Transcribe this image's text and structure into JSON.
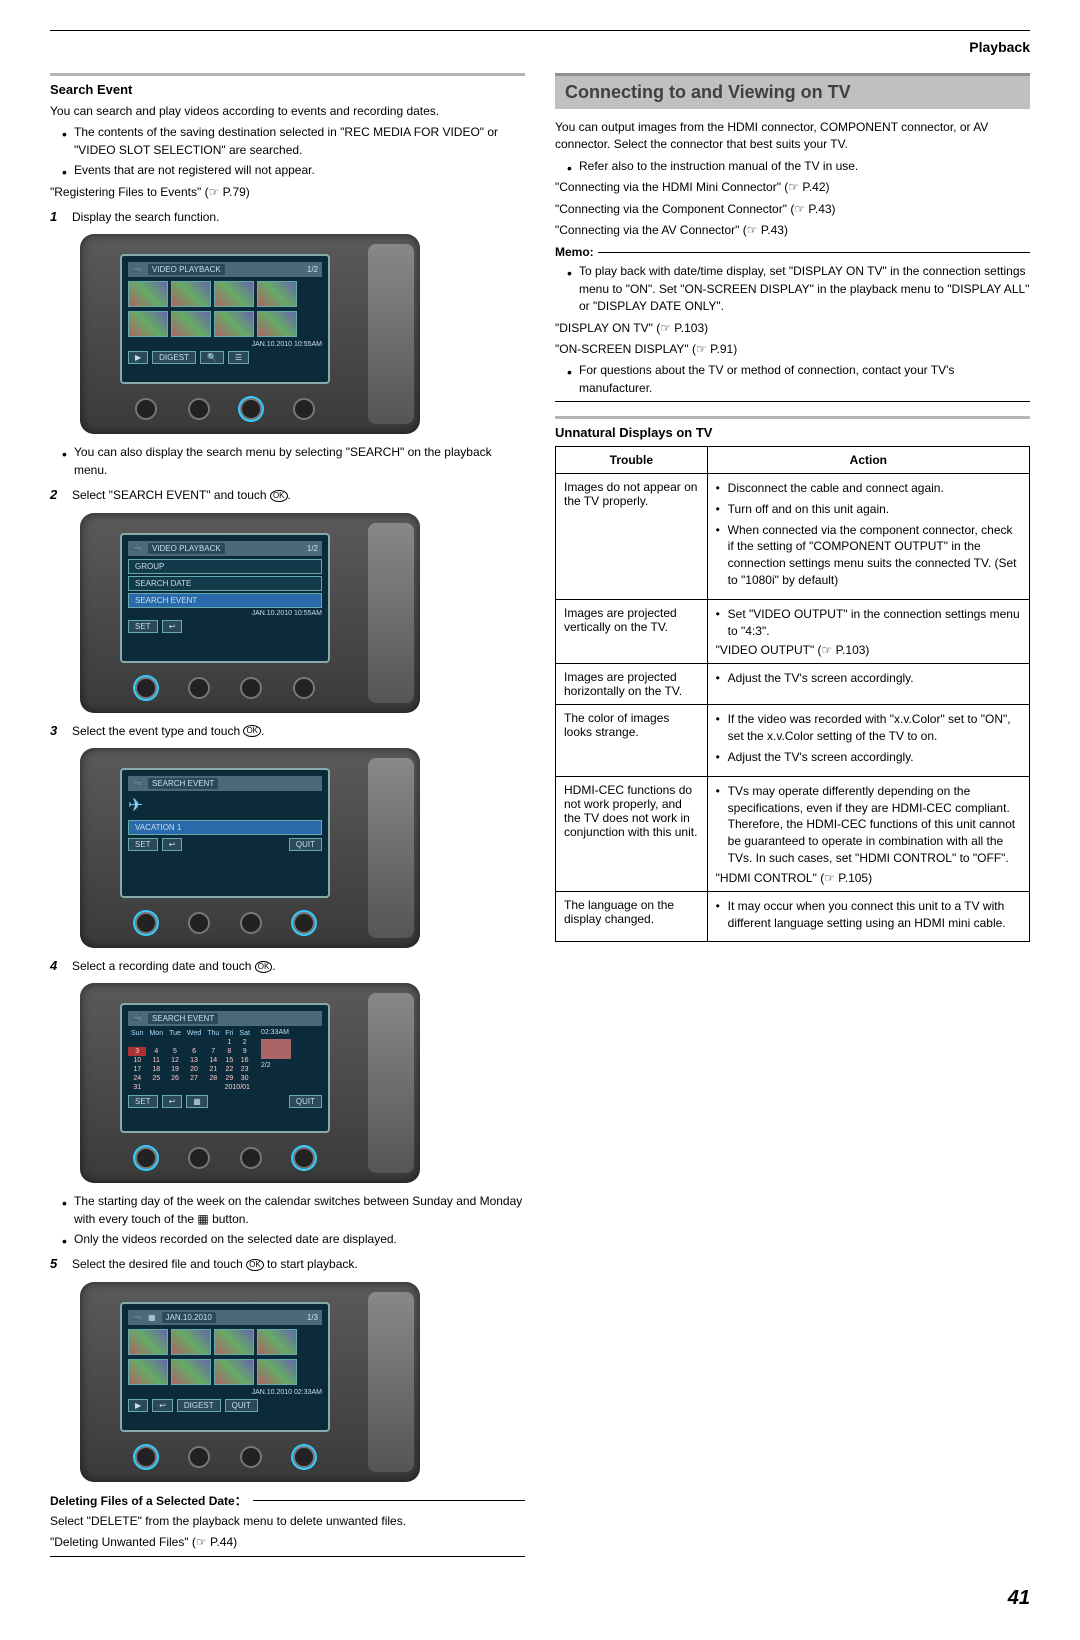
{
  "header": {
    "section": "Playback"
  },
  "left": {
    "title": "Search Event",
    "intro": "You can search and play videos according to events and recording dates.",
    "bullets_a": [
      "The contents of the saving destination selected in \"REC MEDIA FOR VIDEO\" or \"VIDEO SLOT SELECTION\" are searched.",
      "Events that are not registered will not appear."
    ],
    "ref_a": "\"Registering Files to Events\"  (☞ P.79)",
    "steps": [
      {
        "n": "1",
        "text": "Display the search function."
      },
      {
        "n": "2",
        "text": "Select \"SEARCH EVENT\" and touch "
      },
      {
        "n": "3",
        "text": "Select the event type and touch "
      },
      {
        "n": "4",
        "text": "Select a recording date and touch "
      },
      {
        "n": "5",
        "text": "Select the desired file and touch "
      }
    ],
    "step1_note": "You can also display the search menu by selecting \"SEARCH\" on the playback menu.",
    "step4_notes": [
      "The starting day of the week on the calendar switches between Sunday and Monday with every touch of the ▦ button.",
      "Only the videos recorded on the selected date are displayed."
    ],
    "step5_tail": " to start playback.",
    "del_head": "Deleting Files of a Selected Date：",
    "del_text": "Select \"DELETE\" from the playback menu to delete unwanted files.",
    "del_ref": "\"Deleting Unwanted Files\"  (☞ P.44)",
    "screens": {
      "s1": {
        "title": "VIDEO PLAYBACK",
        "count": "1/2",
        "date": "JAN.10.2010 10:55AM",
        "btns": [
          "▶",
          "DIGEST",
          "🔍",
          "☰"
        ]
      },
      "s2": {
        "title": "VIDEO PLAYBACK",
        "count": "1/2",
        "items": [
          "GROUP",
          "SEARCH DATE",
          "SEARCH EVENT"
        ],
        "date": "JAN.10.2010 10:55AM",
        "left": "SET",
        "back": "↩"
      },
      "s3": {
        "title": "SEARCH EVENT",
        "item": "VACATION 1",
        "left": "SET",
        "back": "↩",
        "quit": "QUIT"
      },
      "s4": {
        "title": "SEARCH EVENT",
        "time": "02:33AM",
        "page": "2/2",
        "ym": "2010/01",
        "left": "SET",
        "back": "↩",
        "quit": "QUIT"
      },
      "s5": {
        "title": "JAN.10.2010",
        "count": "1/3",
        "date": "JAN.10.2010 02:33AM",
        "btns": [
          "▶",
          "↩",
          "DIGEST",
          "QUIT"
        ]
      }
    }
  },
  "right": {
    "heading": "Connecting to and Viewing on TV",
    "intro": "You can output images from the HDMI connector, COMPONENT connector, or AV connector. Select the connector that best suits your TV.",
    "bullet1": "Refer also to the instruction manual of the TV in use.",
    "refs": [
      "\"Connecting via the HDMI Mini Connector\"  (☞ P.42)",
      "\"Connecting via the Component Connector\"  (☞ P.43)",
      "\"Connecting via the AV Connector\"  (☞ P.43)"
    ],
    "memo_label": "Memo:",
    "memo_bullet": "To play back with date/time display, set \"DISPLAY ON TV\" in the connection settings menu to \"ON\". Set \"ON-SCREEN DISPLAY\" in the playback menu to \"DISPLAY ALL\" or \"DISPLAY DATE ONLY\".",
    "memo_refs": [
      "\"DISPLAY ON TV\"  (☞ P.103)",
      "\"ON-SCREEN DISPLAY\"  (☞ P.91)"
    ],
    "memo_bullet2": "For questions about the TV or method of connection, contact your TV's manufacturer.",
    "sub_title": "Unnatural Displays on TV",
    "table": {
      "head": [
        "Trouble",
        "Action"
      ],
      "rows": [
        {
          "trouble": "Images do not appear on the TV properly.",
          "actions": [
            "Disconnect the cable and connect again.",
            "Turn off and on this unit again.",
            "When connected via the component connector, check if the setting of \"COMPONENT OUTPUT\" in the connection settings menu suits the connected TV. (Set to \"1080i\" by default)"
          ]
        },
        {
          "trouble": "Images are projected vertically on the TV.",
          "actions": [
            "Set \"VIDEO OUTPUT\" in the connection settings menu to \"4:3\"."
          ],
          "after": "\"VIDEO OUTPUT\"  (☞ P.103)"
        },
        {
          "trouble": "Images are projected horizontally on the TV.",
          "actions": [
            "Adjust the TV's screen accordingly."
          ]
        },
        {
          "trouble": "The color of images looks strange.",
          "actions": [
            "If the video was recorded with \"x.v.Color\" set to \"ON\", set the x.v.Color setting of the TV to on.",
            "Adjust the TV's screen accordingly."
          ]
        },
        {
          "trouble": "HDMI-CEC functions do not work properly, and the TV does not work in conjunction with this unit.",
          "actions": [
            "TVs may operate differently depending on the specifications, even if they are HDMI-CEC compliant. Therefore, the HDMI-CEC functions of this unit cannot be guaranteed to operate in combination with all the TVs. In such cases, set \"HDMI CONTROL\" to \"OFF\"."
          ],
          "after": "\"HDMI CONTROL\"  (☞ P.105)"
        },
        {
          "trouble": "The language on the display changed.",
          "actions": [
            "It may occur when you connect this unit to a TV with different language setting using an HDMI mini cable."
          ]
        }
      ]
    }
  },
  "page_number": "41"
}
